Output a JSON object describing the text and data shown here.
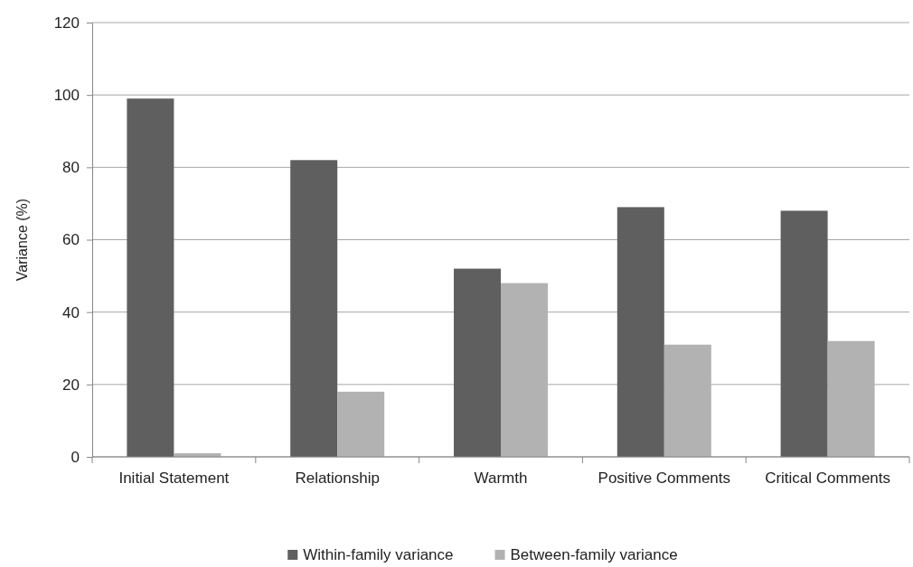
{
  "chart_data": {
    "type": "bar",
    "ylabel": "Variance (%)",
    "categories": [
      "Initial Statement",
      "Relationship",
      "Warmth",
      "Positive Comments",
      "Critical Comments"
    ],
    "series": [
      {
        "name": "Within-family variance",
        "color": "#5f5f5f",
        "values": [
          99,
          82,
          52,
          69,
          68
        ]
      },
      {
        "name": "Between-family variance",
        "color": "#b2b2b2",
        "values": [
          1,
          18,
          48,
          31,
          32
        ]
      }
    ],
    "ylim": [
      0,
      120
    ],
    "yticks": [
      0,
      20,
      40,
      60,
      80,
      100,
      120
    ],
    "grid": "y",
    "legend": "bottom"
  }
}
